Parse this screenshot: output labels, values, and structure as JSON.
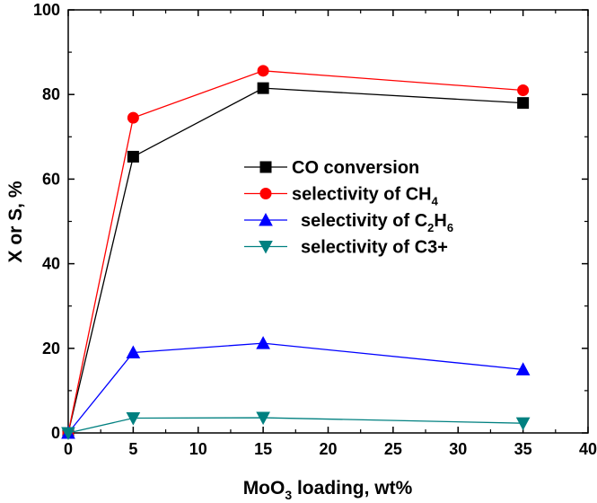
{
  "chart_data": {
    "type": "line",
    "x": [
      0,
      5,
      15,
      35
    ],
    "series": [
      {
        "name": "CO conversion",
        "legend": {
          "main": "CO conversion",
          "sub": "",
          "tail": ""
        },
        "values": [
          0,
          65.3,
          81.5,
          78.0
        ],
        "color": "#000000",
        "marker": "square"
      },
      {
        "name": "selectivity of CH4",
        "legend": {
          "main": "selectivity of CH",
          "sub": "4",
          "tail": ""
        },
        "values": [
          0,
          74.5,
          85.6,
          81.0
        ],
        "color": "#ff0000",
        "marker": "circle"
      },
      {
        "name": "selectivity of C2H6",
        "legend": {
          "main": "selectivity of C",
          "sub": "2",
          "tail": "H",
          "sub2": "6"
        },
        "values": [
          0,
          19.0,
          21.2,
          15.0
        ],
        "color": "#0000ff",
        "marker": "triangle-up"
      },
      {
        "name": "selectivity of C3+",
        "legend": {
          "main": "selectivity of C3+",
          "sub": "",
          "tail": ""
        },
        "values": [
          0,
          3.5,
          3.6,
          2.3
        ],
        "color": "#008080",
        "marker": "triangle-down"
      }
    ],
    "xlabel": {
      "pre": "MoO",
      "sub": "3",
      "post": " loading, wt%"
    },
    "ylabel": "X or S, %",
    "xlim": [
      0,
      40
    ],
    "ylim": [
      0,
      100
    ],
    "xticks": [
      0,
      5,
      10,
      15,
      20,
      25,
      30,
      35,
      40
    ],
    "yticks": [
      0,
      20,
      40,
      60,
      80,
      100
    ],
    "legend_position": "center-right",
    "grid": false
  }
}
